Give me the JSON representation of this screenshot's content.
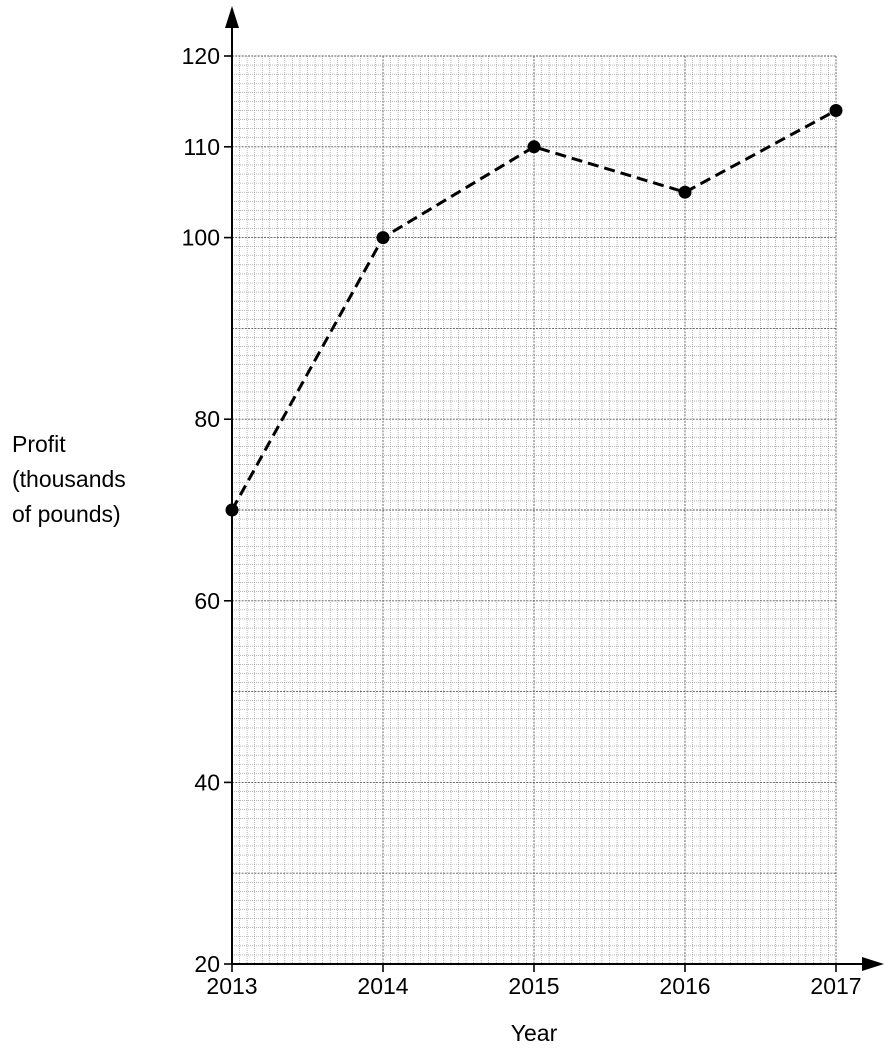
{
  "chart_data": {
    "type": "line",
    "xlabel": "Year",
    "ylabel_lines": [
      "Profit",
      "(thousands",
      "of pounds)"
    ],
    "x": [
      2013,
      2014,
      2015,
      2016,
      2017
    ],
    "xlim": [
      2013,
      2017
    ],
    "ylim": [
      20,
      120
    ],
    "x_ticks": [
      "2013",
      "2014",
      "2015",
      "2016",
      "2017"
    ],
    "y_ticks": [
      "20",
      "40",
      "60",
      "80",
      "100",
      "110",
      "120"
    ],
    "y_tick_values": [
      20,
      40,
      60,
      80,
      100,
      110,
      120
    ],
    "grid": true,
    "series": [
      {
        "values": [
          70,
          100,
          110,
          105,
          114
        ],
        "line_style": "dashed",
        "marker": "filled-circle",
        "color": "#000000"
      }
    ]
  }
}
